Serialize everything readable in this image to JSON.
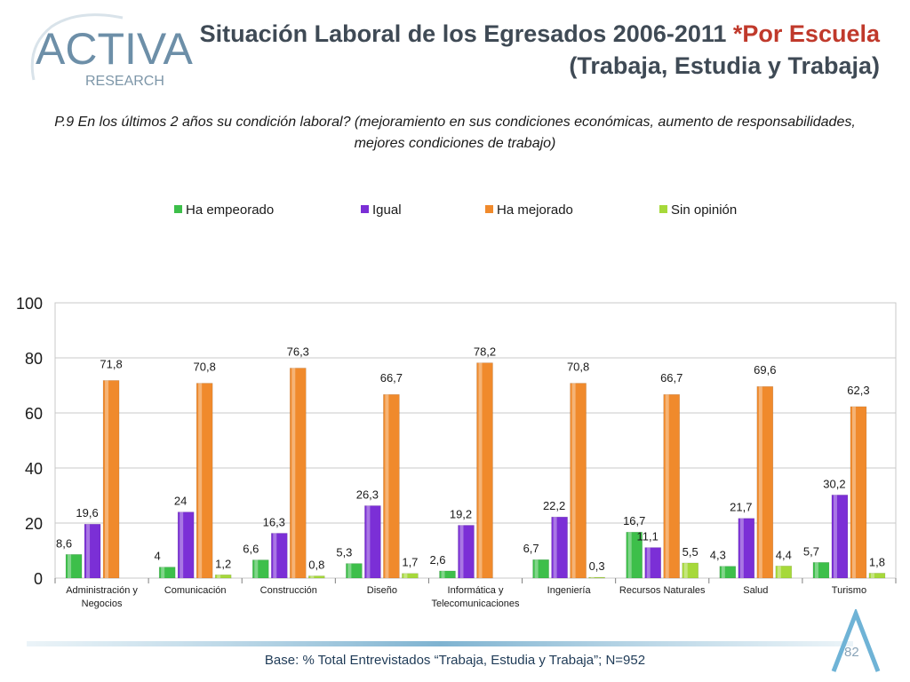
{
  "brand": {
    "name_main": "ACTIVA",
    "name_sub": "RESEARCH"
  },
  "header": {
    "title_main": "Situación Laboral de los Egresados 2006-2011 ",
    "title_accent": "*Por Escuela",
    "title_line2": "(Trabaja, Estudia y Trabaja)",
    "question": "P.9  En los últimos 2 años su condición laboral? (mejoramiento en sus condiciones económicas, aumento de responsabilidades, mejores condiciones de trabajo)"
  },
  "colors": {
    "empeorado": "#3dbf4a",
    "igual": "#7b2fd6",
    "mejorado": "#f08a2c",
    "sin_opinion": "#a6d93a",
    "grid": "#c8c8c8",
    "axis": "#7f7f7f"
  },
  "chart_data": {
    "type": "bar",
    "categories": [
      [
        "Administración y",
        "Negocios"
      ],
      [
        "Comunicación"
      ],
      [
        "Construcción"
      ],
      [
        "Diseño"
      ],
      [
        "Informática y",
        "Telecomunicaciones"
      ],
      [
        "Ingeniería"
      ],
      [
        "Recursos Naturales"
      ],
      [
        "Salud"
      ],
      [
        "Turismo"
      ]
    ],
    "series": [
      {
        "name": "Ha empeorado",
        "color_key": "empeorado",
        "values": [
          8.6,
          4,
          6.6,
          5.3,
          2.6,
          6.7,
          16.7,
          4.3,
          5.7
        ],
        "labels": [
          "8,6",
          "4",
          "6,6",
          "5,3",
          "2,6",
          "6,7",
          "16,7",
          "4,3",
          "5,7"
        ]
      },
      {
        "name": "Igual",
        "color_key": "igual",
        "values": [
          19.6,
          24,
          16.3,
          26.3,
          19.2,
          22.2,
          11.1,
          21.7,
          30.2
        ],
        "labels": [
          "19,6",
          "24",
          "16,3",
          "26,3",
          "19,2",
          "22,2",
          "11,1",
          "21,7",
          "30,2"
        ]
      },
      {
        "name": "Ha mejorado",
        "color_key": "mejorado",
        "values": [
          71.8,
          70.8,
          76.3,
          66.7,
          78.2,
          70.8,
          66.7,
          69.6,
          62.3
        ],
        "labels": [
          "71,8",
          "70,8",
          "76,3",
          "66,7",
          "78,2",
          "70,8",
          "66,7",
          "69,6",
          "62,3"
        ]
      },
      {
        "name": "Sin opinión",
        "color_key": "sin_opinion",
        "values": [
          0,
          1.2,
          0.8,
          1.7,
          0,
          0.3,
          5.5,
          4.4,
          1.8
        ],
        "labels": [
          "",
          "1,2",
          "0,8",
          "1,7",
          "",
          "0,3",
          "5,5",
          "4,4",
          "1,8"
        ]
      }
    ],
    "yticks": [
      0,
      20,
      40,
      60,
      80,
      100
    ],
    "ylim": [
      0,
      100
    ],
    "legend_position": "top",
    "grid": true
  },
  "footer": {
    "base_note": "Base: % Total Entrevistados “Trabaja, Estudia y Trabaja”; N=952",
    "page_number": "82"
  }
}
